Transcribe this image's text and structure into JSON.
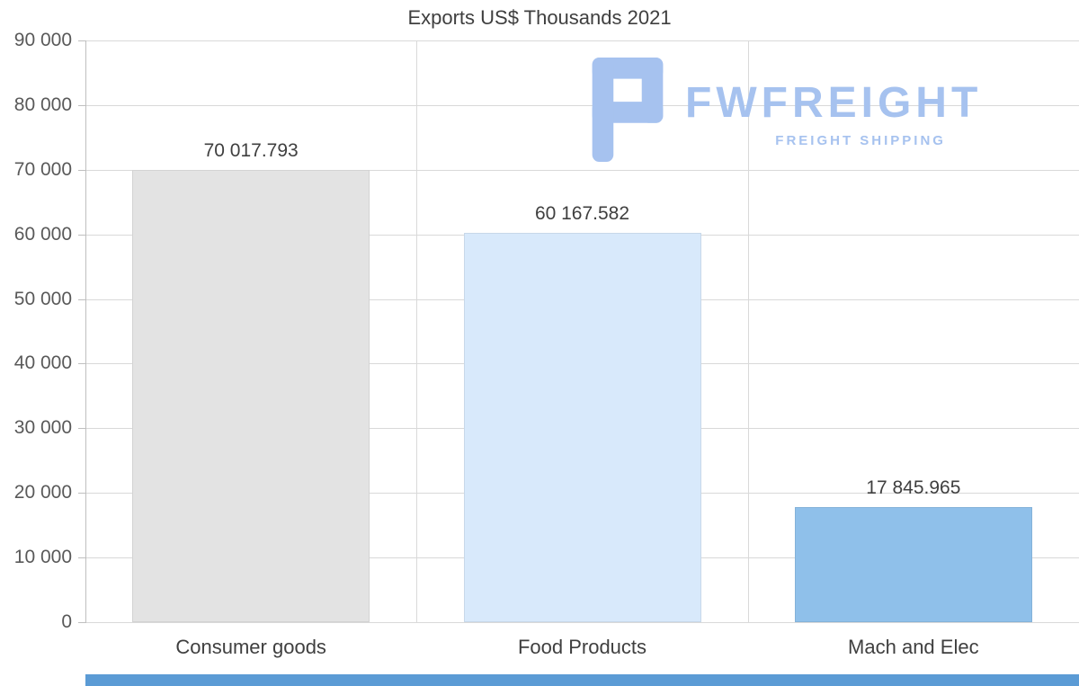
{
  "title": "Exports US$ Thousands 2021",
  "watermark": {
    "brand": "FWFREIGHT",
    "tagline": "FREIGHT SHIPPING",
    "color": "#a6c2ef"
  },
  "chart_data": {
    "type": "bar",
    "title": "Exports US$ Thousands 2021",
    "categories": [
      "Consumer goods",
      "Food Products",
      "Mach and Elec"
    ],
    "values": [
      70017.793,
      60167.582,
      17845.965
    ],
    "value_labels": [
      "70 017.793",
      "60 167.582",
      "17 845.965"
    ],
    "bar_colors": [
      "#e3e3e3",
      "#d8e9fb",
      "#8fc0ea"
    ],
    "xlabel": "",
    "ylabel": "",
    "ylim": [
      0,
      90000
    ],
    "ytick_interval": 10000,
    "ytick_labels": [
      "0",
      "10 000",
      "20 000",
      "30 000",
      "40 000",
      "50 000",
      "60 000",
      "70 000",
      "80 000",
      "90 000"
    ],
    "grid": true,
    "legend": false
  },
  "colors": {
    "grid": "#d9d9d9",
    "axis": "#bfbfbf",
    "text": "#3f3f3f",
    "tick_text": "#595959",
    "footer_strip": "#5b9bd5",
    "background": "#ffffff"
  }
}
